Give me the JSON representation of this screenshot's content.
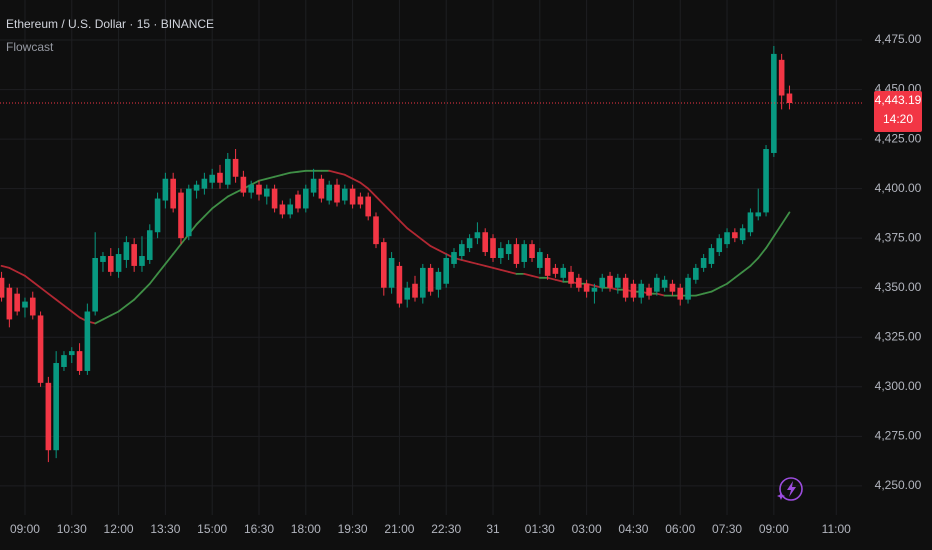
{
  "chart_data": {
    "type": "candlestick",
    "title": "Ethereum / U.S. Dollar · 15 · BINANCE",
    "up_color": "#089981",
    "down_color": "#f23645",
    "grid": true,
    "xlim": [
      -3.2,
      107.3
    ],
    "ylim": [
      4235.3,
      4495.2
    ],
    "xticks": [
      {
        "value": 0,
        "label": "09:00"
      },
      {
        "value": 6,
        "label": "10:30"
      },
      {
        "value": 12,
        "label": "12:00"
      },
      {
        "value": 18,
        "label": "13:30"
      },
      {
        "value": 24,
        "label": "15:00"
      },
      {
        "value": 30,
        "label": "16:30"
      },
      {
        "value": 36,
        "label": "18:00"
      },
      {
        "value": 42,
        "label": "19:30"
      },
      {
        "value": 48,
        "label": "21:00"
      },
      {
        "value": 54,
        "label": "22:30"
      },
      {
        "value": 60,
        "label": "31"
      },
      {
        "value": 66,
        "label": "01:30"
      },
      {
        "value": 72,
        "label": "03:00"
      },
      {
        "value": 78,
        "label": "04:30"
      },
      {
        "value": 84,
        "label": "06:00"
      },
      {
        "value": 90,
        "label": "07:30"
      },
      {
        "value": 96,
        "label": "09:00"
      },
      {
        "value": 104,
        "label": "11:00"
      }
    ],
    "yticks": [
      {
        "value": 4250,
        "label": "4,250.00"
      },
      {
        "value": 4275,
        "label": "4,275.00"
      },
      {
        "value": 4300,
        "label": "4,300.00"
      },
      {
        "value": 4325,
        "label": "4,325.00"
      },
      {
        "value": 4350,
        "label": "4,350.00"
      },
      {
        "value": 4375,
        "label": "4,375.00"
      },
      {
        "value": 4400,
        "label": "4,400.00"
      },
      {
        "value": 4425,
        "label": "4,425.00"
      },
      {
        "value": 4450,
        "label": "4,450.00"
      },
      {
        "value": 4475,
        "label": "4,475.00"
      }
    ],
    "x": [
      -3,
      -2,
      -1,
      0,
      1,
      2,
      3,
      4,
      5,
      6,
      7,
      8,
      9,
      10,
      11,
      12,
      13,
      14,
      15,
      16,
      17,
      18,
      19,
      20,
      21,
      22,
      23,
      24,
      25,
      26,
      27,
      28,
      29,
      30,
      31,
      32,
      33,
      34,
      35,
      36,
      37,
      38,
      39,
      40,
      41,
      42,
      43,
      44,
      45,
      46,
      47,
      48,
      49,
      50,
      51,
      52,
      53,
      54,
      55,
      56,
      57,
      58,
      59,
      60,
      61,
      62,
      63,
      64,
      65,
      66,
      67,
      68,
      69,
      70,
      71,
      72,
      73,
      74,
      75,
      76,
      77,
      78,
      79,
      80,
      81,
      82,
      83,
      84,
      85,
      86,
      87,
      88,
      89,
      90,
      91,
      92,
      93,
      94,
      95,
      96,
      97,
      98
    ],
    "open": [
      4355,
      4350,
      4347,
      4340,
      4345,
      4336,
      4302,
      4268,
      4310,
      4316,
      4318,
      4308,
      4338,
      4363,
      4366,
      4358,
      4364,
      4372,
      4361,
      4364,
      4378,
      4394,
      4405,
      4398,
      4376,
      4399,
      4400,
      4403,
      4408,
      4402,
      4415,
      4406,
      4398,
      4402,
      4396,
      4400,
      4392,
      4387,
      4397,
      4390,
      4398,
      4405,
      4394,
      4402,
      4394,
      4400,
      4396,
      4396,
      4386,
      4373,
      4350,
      4361,
      4344,
      4352,
      4345,
      4360,
      4349,
      4352,
      4362,
      4366,
      4370,
      4375,
      4378,
      4375,
      4365,
      4367,
      4372,
      4363,
      4372,
      4360,
      4365,
      4360,
      4355,
      4358,
      4355,
      4352,
      4348,
      4350,
      4356,
      4350,
      4355,
      4352,
      4345,
      4350,
      4348,
      4350,
      4352,
      4350,
      4344,
      4354,
      4360,
      4362,
      4368,
      4372,
      4378,
      4374,
      4378,
      4386,
      4388,
      4418,
      4465,
      4448
    ],
    "high": [
      4358,
      4352,
      4350,
      4345,
      4348,
      4338,
      4305,
      4318,
      4318,
      4320,
      4322,
      4342,
      4378,
      4368,
      4370,
      4370,
      4376,
      4375,
      4376,
      4382,
      4398,
      4408,
      4408,
      4400,
      4402,
      4404,
      4408,
      4410,
      4412,
      4418,
      4420,
      4409,
      4404,
      4404,
      4402,
      4402,
      4394,
      4395,
      4399,
      4402,
      4410,
      4407,
      4404,
      4405,
      4402,
      4402,
      4398,
      4398,
      4388,
      4375,
      4368,
      4363,
      4353,
      4356,
      4362,
      4362,
      4360,
      4367,
      4370,
      4374,
      4377,
      4383,
      4380,
      4377,
      4373,
      4374,
      4375,
      4374,
      4374,
      4370,
      4367,
      4362,
      4362,
      4361,
      4357,
      4354,
      4352,
      4357,
      4358,
      4357,
      4357,
      4354,
      4354,
      4352,
      4357,
      4356,
      4354,
      4352,
      4357,
      4362,
      4367,
      4372,
      4377,
      4380,
      4380,
      4382,
      4390,
      4400,
      4422,
      4472,
      4468,
      4452
    ],
    "low": [
      4343,
      4330,
      4336,
      4335,
      4334,
      4300,
      4262,
      4264,
      4308,
      4312,
      4306,
      4306,
      4336,
      4358,
      4356,
      4355,
      4360,
      4358,
      4358,
      4362,
      4375,
      4390,
      4388,
      4372,
      4374,
      4395,
      4397,
      4400,
      4400,
      4400,
      4403,
      4396,
      4395,
      4394,
      4392,
      4388,
      4385,
      4385,
      4388,
      4388,
      4396,
      4393,
      4392,
      4391,
      4392,
      4390,
      4390,
      4384,
      4370,
      4346,
      4347,
      4340,
      4340,
      4343,
      4342,
      4346,
      4345,
      4350,
      4360,
      4364,
      4368,
      4372,
      4366,
      4363,
      4362,
      4364,
      4360,
      4360,
      4363,
      4357,
      4354,
      4355,
      4353,
      4350,
      4348,
      4345,
      4342,
      4348,
      4348,
      4347,
      4343,
      4343,
      4342,
      4344,
      4346,
      4348,
      4346,
      4341,
      4342,
      4352,
      4358,
      4360,
      4366,
      4370,
      4373,
      4372,
      4376,
      4384,
      4386,
      4416,
      4440,
      4440
    ],
    "close": [
      4345,
      4334,
      4338,
      4343,
      4336,
      4302,
      4268,
      4312,
      4316,
      4318,
      4308,
      4338,
      4365,
      4366,
      4358,
      4367,
      4373,
      4361,
      4366,
      4379,
      4395,
      4405,
      4390,
      4375,
      4400,
      4402,
      4405,
      4407,
      4403,
      4415,
      4406,
      4398,
      4402,
      4397,
      4400,
      4390,
      4387,
      4392,
      4390,
      4400,
      4405,
      4395,
      4402,
      4393,
      4400,
      4392,
      4392,
      4386,
      4372,
      4350,
      4365,
      4342,
      4350,
      4345,
      4360,
      4348,
      4358,
      4365,
      4368,
      4372,
      4375,
      4378,
      4368,
      4365,
      4370,
      4372,
      4362,
      4372,
      4365,
      4368,
      4356,
      4357,
      4360,
      4352,
      4350,
      4348,
      4350,
      4355,
      4350,
      4355,
      4345,
      4345,
      4352,
      4346,
      4355,
      4354,
      4348,
      4344,
      4355,
      4360,
      4365,
      4370,
      4375,
      4378,
      4375,
      4380,
      4388,
      4388,
      4420,
      4468,
      4447,
      4443.19
    ],
    "series": [
      {
        "name": "Flowcast",
        "rising_color": "#3f8f46",
        "falling_color": "#b22833",
        "values": [
          4361,
          4360,
          4358,
          4356,
          4353,
          4350,
          4347,
          4344,
          4341,
          4338,
          4335,
          4333,
          4332,
          4334,
          4336,
          4338,
          4341,
          4344,
          4348,
          4352,
          4357,
          4362,
          4367,
          4372,
          4377,
          4382,
          4386,
          4390,
          4393,
          4396,
          4398,
          4400,
          4402,
          4404,
          4405,
          4406,
          4407,
          4408,
          4408.5,
          4409,
          4409,
          4409,
          4409,
          4408,
          4407,
          4405,
          4403,
          4400,
          4396,
          4392,
          4388,
          4384,
          4380,
          4377,
          4374,
          4371,
          4369,
          4367,
          4365,
          4364,
          4363,
          4362,
          4361,
          4360,
          4359,
          4358,
          4357,
          4357,
          4356,
          4355,
          4355,
          4354,
          4353,
          4353,
          4352,
          4352,
          4351,
          4350,
          4350,
          4349,
          4349,
          4348,
          4348,
          4347,
          4347,
          4346,
          4346,
          4346,
          4346,
          4346,
          4347,
          4348,
          4350,
          4352,
          4355,
          4358,
          4361,
          4365,
          4370,
          4376,
          4382,
          4388
        ]
      }
    ],
    "last_price": 4443.19,
    "last_price_label": "4,443.19",
    "countdown": "14:20"
  }
}
